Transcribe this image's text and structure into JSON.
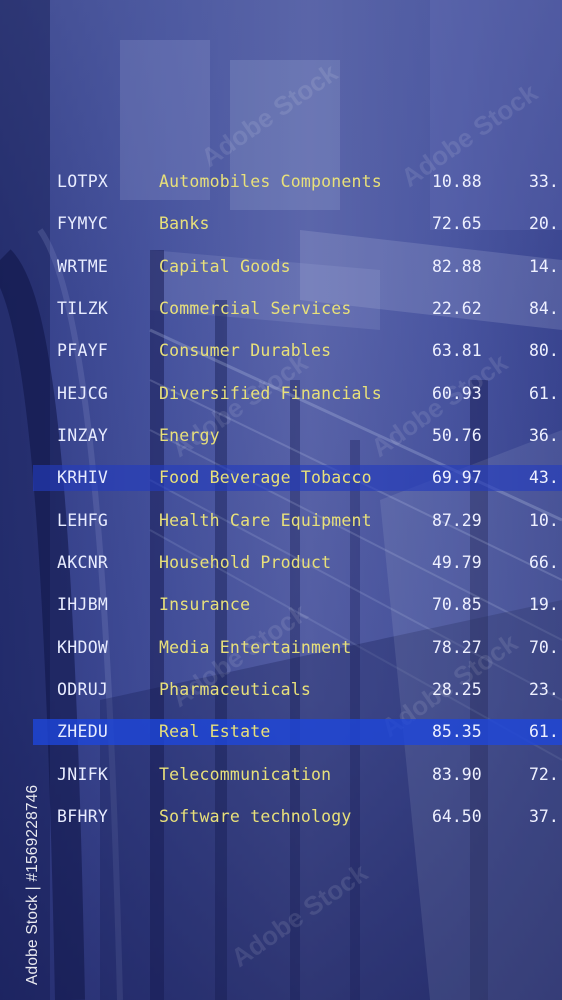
{
  "rows": [
    {
      "ticker": "LOTPX",
      "sector": "Automobiles Components",
      "value1": "10.88",
      "value2": "33.",
      "highlight": "none"
    },
    {
      "ticker": "FYMYC",
      "sector": "Banks",
      "value1": "72.65",
      "value2": "20.",
      "highlight": "none"
    },
    {
      "ticker": "WRTME",
      "sector": "Capital Goods",
      "value1": "82.88",
      "value2": "14.",
      "highlight": "none"
    },
    {
      "ticker": "TILZK",
      "sector": "Commercial Services",
      "value1": "22.62",
      "value2": "84.",
      "highlight": "none"
    },
    {
      "ticker": "PFAYF",
      "sector": "Consumer Durables",
      "value1": "63.81",
      "value2": "80.",
      "highlight": "none"
    },
    {
      "ticker": "HEJCG",
      "sector": "Diversified Financials",
      "value1": "60.93",
      "value2": "61.",
      "highlight": "none"
    },
    {
      "ticker": "INZAY",
      "sector": "Energy",
      "value1": "50.76",
      "value2": "36.",
      "highlight": "none"
    },
    {
      "ticker": "KRHIV",
      "sector": "Food Beverage Tobacco",
      "value1": "69.97",
      "value2": "43.",
      "highlight": "dim"
    },
    {
      "ticker": "LEHFG",
      "sector": "Health Care Equipment",
      "value1": "87.29",
      "value2": "10.",
      "highlight": "none"
    },
    {
      "ticker": "AKCNR",
      "sector": "Household Product",
      "value1": "49.79",
      "value2": "66.",
      "highlight": "none"
    },
    {
      "ticker": "IHJBM",
      "sector": "Insurance",
      "value1": "70.85",
      "value2": "19.",
      "highlight": "none"
    },
    {
      "ticker": "KHDOW",
      "sector": "Media Entertainment",
      "value1": "78.27",
      "value2": "70.",
      "highlight": "none"
    },
    {
      "ticker": "ODRUJ",
      "sector": "Pharmaceuticals",
      "value1": "28.25",
      "value2": "23.",
      "highlight": "none"
    },
    {
      "ticker": "ZHEDU",
      "sector": "Real Estate",
      "value1": "85.35",
      "value2": "61.",
      "highlight": "bright"
    },
    {
      "ticker": "JNIFK",
      "sector": "Telecommunication",
      "value1": "83.90",
      "value2": "72.",
      "highlight": "none"
    },
    {
      "ticker": "BFHRY",
      "sector": "Software technology",
      "value1": "64.50",
      "value2": "37.",
      "highlight": "none"
    }
  ],
  "watermark": {
    "side_text": "Adobe Stock | #1569228746",
    "tile_text": "Adobe Stock"
  },
  "colors": {
    "ticker": "#e8ecff",
    "sector": "#e8e07a",
    "value": "#eef0ff",
    "highlight_bright": "#1e46dc",
    "highlight_dim": "#233cbe"
  }
}
